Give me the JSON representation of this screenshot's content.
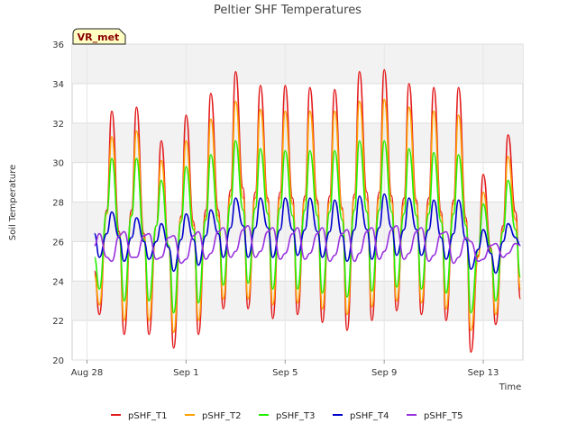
{
  "chart_data": {
    "type": "line",
    "title": "Peltier SHF Temperatures",
    "xlabel": "Time",
    "ylabel": "Soil Temperature",
    "badge": "VR_met",
    "xlim": [
      -0.6,
      17.6
    ],
    "ylim": [
      20,
      36
    ],
    "yticks": [
      20,
      22,
      24,
      26,
      28,
      30,
      32,
      34,
      36
    ],
    "xticks": [
      {
        "day": 0,
        "label": "Aug 28"
      },
      {
        "day": 4,
        "label": "Sep 1"
      },
      {
        "day": 8,
        "label": "Sep 5"
      },
      {
        "day": 12,
        "label": "Sep 9"
      },
      {
        "day": 16,
        "label": "Sep 13"
      }
    ],
    "grid": true,
    "legend_position": "bottom",
    "x": [
      0.3,
      0.5,
      0.8,
      1.0,
      1.3,
      1.5,
      1.8,
      2.0,
      2.3,
      2.5,
      2.8,
      3.0,
      3.3,
      3.5,
      3.8,
      4.0,
      4.3,
      4.5,
      4.8,
      5.0,
      5.3,
      5.5,
      5.8,
      6.0,
      6.3,
      6.5,
      6.8,
      7.0,
      7.3,
      7.5,
      7.8,
      8.0,
      8.3,
      8.5,
      8.8,
      9.0,
      9.3,
      9.5,
      9.8,
      10.0,
      10.3,
      10.5,
      10.8,
      11.0,
      11.3,
      11.5,
      11.8,
      12.0,
      12.3,
      12.5,
      12.8,
      13.0,
      13.3,
      13.5,
      13.8,
      14.0,
      14.3,
      14.5,
      14.8,
      15.0,
      15.3,
      15.5,
      15.8,
      16.0,
      16.3,
      16.5,
      16.8,
      17.0,
      17.3,
      17.5
    ],
    "series": [
      {
        "name": "pSHF_T1",
        "color": "#e31a1c",
        "values": [
          24.5,
          22.3,
          27.6,
          32.6,
          26.5,
          21.3,
          27.6,
          32.8,
          26.4,
          21.3,
          26.8,
          31.1,
          25.7,
          20.6,
          27.3,
          32.4,
          27.0,
          21.3,
          27.6,
          33.5,
          27.6,
          22.6,
          28.6,
          34.6,
          28.7,
          22.6,
          28.5,
          33.9,
          28.2,
          22.1,
          28.5,
          33.9,
          28.2,
          22.3,
          28.3,
          33.8,
          28.1,
          21.9,
          28.3,
          33.7,
          27.7,
          21.5,
          28.4,
          34.6,
          28.5,
          22.0,
          28.5,
          34.7,
          28.3,
          22.5,
          28.2,
          34.0,
          28.1,
          22.3,
          28.2,
          33.8,
          27.5,
          22.0,
          28.1,
          33.8,
          27.2,
          20.4,
          25.3,
          29.4,
          25.7,
          21.8,
          26.8,
          31.4,
          27.5,
          23.1
        ]
      },
      {
        "name": "pSHF_T2",
        "color": "#ff9f00",
        "values": [
          24.3,
          22.8,
          27.4,
          31.3,
          26.3,
          22.0,
          27.4,
          31.6,
          26.2,
          22.0,
          26.8,
          30.1,
          25.7,
          21.4,
          27.2,
          31.1,
          26.8,
          22.0,
          27.3,
          32.2,
          27.3,
          23.1,
          28.3,
          33.1,
          28.2,
          23.1,
          28.2,
          32.7,
          28.0,
          22.8,
          28.2,
          32.6,
          27.9,
          22.9,
          28.1,
          32.6,
          27.9,
          22.6,
          28.0,
          32.6,
          27.6,
          22.3,
          28.2,
          33.1,
          28.1,
          22.7,
          28.2,
          33.2,
          28.0,
          23.0,
          27.9,
          32.8,
          27.9,
          22.9,
          27.9,
          32.6,
          27.3,
          22.6,
          27.9,
          32.4,
          27.0,
          21.5,
          25.2,
          28.5,
          25.5,
          22.3,
          26.6,
          30.3,
          27.1,
          23.6
        ]
      },
      {
        "name": "pSHF_T3",
        "color": "#22ee00",
        "values": [
          25.2,
          23.6,
          27.5,
          30.2,
          26.3,
          23.0,
          27.3,
          30.2,
          26.1,
          23.0,
          26.8,
          29.1,
          25.8,
          22.4,
          27.0,
          29.8,
          26.6,
          22.9,
          27.1,
          30.4,
          27.0,
          23.8,
          27.9,
          31.1,
          27.6,
          23.9,
          27.7,
          30.7,
          27.4,
          23.6,
          27.7,
          30.6,
          27.3,
          23.6,
          27.6,
          30.6,
          27.3,
          23.4,
          27.5,
          30.6,
          27.1,
          23.2,
          27.6,
          31.1,
          27.5,
          23.5,
          27.6,
          31.1,
          27.5,
          23.7,
          27.4,
          30.7,
          27.3,
          23.6,
          27.4,
          30.5,
          27.0,
          23.4,
          27.4,
          30.4,
          26.8,
          22.4,
          25.6,
          27.9,
          25.6,
          23.0,
          26.5,
          29.1,
          26.6,
          24.2
        ]
      },
      {
        "name": "pSHF_T4",
        "color": "#0000cc",
        "values": [
          26.4,
          25.2,
          26.4,
          27.5,
          26.2,
          25.0,
          26.2,
          27.2,
          26.0,
          25.1,
          26.0,
          26.9,
          25.7,
          24.5,
          26.1,
          27.4,
          26.1,
          24.8,
          26.3,
          27.6,
          26.4,
          25.2,
          26.7,
          28.2,
          26.8,
          25.2,
          26.7,
          28.2,
          26.7,
          25.2,
          26.6,
          28.2,
          26.6,
          25.3,
          26.6,
          28.2,
          26.5,
          25.2,
          26.5,
          28.1,
          26.3,
          25.0,
          26.6,
          28.3,
          26.6,
          25.1,
          26.7,
          28.4,
          26.7,
          25.3,
          26.6,
          28.2,
          26.6,
          25.3,
          26.6,
          28.1,
          26.2,
          25.1,
          26.4,
          28.1,
          26.1,
          24.6,
          25.6,
          26.6,
          25.4,
          24.4,
          26.0,
          26.9,
          26.2,
          25.8
        ]
      },
      {
        "name": "pSHF_T5",
        "color": "#9933dd",
        "values": [
          25.8,
          26.4,
          25.2,
          25.0,
          26.3,
          26.5,
          25.2,
          25.2,
          26.3,
          26.4,
          25.1,
          25.2,
          26.2,
          26.3,
          24.9,
          25.1,
          26.3,
          26.5,
          25.1,
          25.4,
          26.5,
          26.7,
          25.2,
          25.5,
          26.6,
          26.8,
          25.2,
          25.5,
          26.5,
          26.7,
          25.1,
          25.4,
          26.4,
          26.7,
          25.1,
          25.4,
          26.4,
          26.7,
          25.0,
          25.3,
          26.4,
          26.6,
          25.0,
          25.4,
          26.5,
          26.7,
          25.1,
          25.5,
          26.6,
          26.8,
          25.1,
          25.4,
          26.5,
          26.7,
          25.0,
          25.3,
          26.4,
          26.5,
          24.9,
          25.2,
          26.2,
          26.0,
          25.0,
          25.1,
          25.8,
          25.9,
          25.2,
          25.4,
          25.9,
          25.8
        ]
      }
    ]
  }
}
